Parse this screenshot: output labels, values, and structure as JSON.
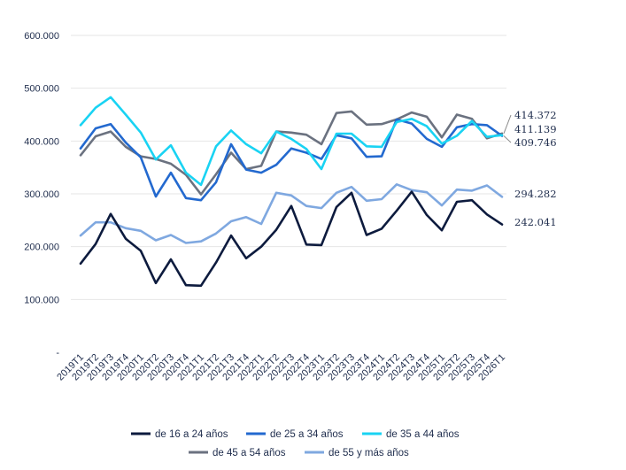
{
  "chart_data": {
    "type": "line",
    "title": "",
    "xlabel": "",
    "ylabel": "",
    "ylim": [
      0,
      600000
    ],
    "yticks": [
      {
        "value": 0,
        "label": "-"
      },
      {
        "value": 100000,
        "label": "100.000"
      },
      {
        "value": 200000,
        "label": "200.000"
      },
      {
        "value": 300000,
        "label": "300.000"
      },
      {
        "value": 400000,
        "label": "400.000"
      },
      {
        "value": 500000,
        "label": "500.000"
      },
      {
        "value": 600000,
        "label": "600.000"
      }
    ],
    "grid": "horizontal",
    "legend_position": "bottom",
    "categories": [
      "2019T1",
      "2019T2",
      "2019T3",
      "2019T4",
      "2020T1",
      "2020T2",
      "2020T3",
      "2020T4",
      "2021T1",
      "2021T2",
      "2021T3",
      "2021T4",
      "2022T1",
      "2022T2",
      "2022T3",
      "2022T4",
      "2023T1",
      "2023T2",
      "2023T3",
      "2023T4",
      "2024T1",
      "2024T2",
      "2024T3",
      "2024T4",
      "2025T1",
      "2025T2",
      "2025T3",
      "2025T4",
      "2026T1"
    ],
    "series": [
      {
        "name": "de 16 a 24 años",
        "color": "#0d1b3e",
        "values": [
          168000,
          205000,
          262000,
          215000,
          192000,
          131000,
          176000,
          127000,
          126000,
          170000,
          221000,
          178000,
          200000,
          232000,
          277000,
          204000,
          203000,
          275000,
          302000,
          222000,
          234000,
          268000,
          304000,
          260000,
          231000,
          285000,
          288000,
          261000,
          242041
        ]
      },
      {
        "name": "de 25 a 34 años",
        "color": "#2369cf",
        "values": [
          386000,
          424000,
          432000,
          397000,
          369000,
          295000,
          340000,
          292000,
          288000,
          322000,
          394000,
          346000,
          340000,
          355000,
          386000,
          378000,
          366000,
          411000,
          405000,
          370000,
          371000,
          441000,
          433000,
          404000,
          389000,
          426000,
          432000,
          430000,
          409746
        ]
      },
      {
        "name": "de 35 a 44 años",
        "color": "#19d3f3",
        "values": [
          430000,
          463000,
          483000,
          450000,
          416000,
          365000,
          392000,
          340000,
          317000,
          390000,
          420000,
          394000,
          377000,
          418000,
          404000,
          385000,
          347000,
          414000,
          414000,
          390000,
          389000,
          436000,
          442000,
          428000,
          395000,
          410000,
          438000,
          408000,
          411139
        ]
      },
      {
        "name": "de 45 a 54 años",
        "color": "#6b7280",
        "values": [
          373000,
          409000,
          418000,
          389000,
          371000,
          366000,
          357000,
          336000,
          299000,
          337000,
          378000,
          347000,
          353000,
          418000,
          416000,
          412000,
          394000,
          453000,
          456000,
          431000,
          432000,
          441000,
          454000,
          446000,
          407000,
          450000,
          442000,
          405000,
          414372
        ]
      },
      {
        "name": "de 55 y más años",
        "color": "#7fa8e0",
        "values": [
          221000,
          246000,
          246000,
          235000,
          230000,
          212000,
          222000,
          207000,
          210000,
          225000,
          248000,
          256000,
          243000,
          302000,
          297000,
          277000,
          273000,
          302000,
          313000,
          287000,
          290000,
          318000,
          307000,
          303000,
          278000,
          308000,
          306000,
          316000,
          294282
        ]
      }
    ],
    "end_labels": [
      {
        "series": 3,
        "text": "414.372"
      },
      {
        "series": 2,
        "text": "411.139"
      },
      {
        "series": 1,
        "text": "409.746"
      },
      {
        "series": 4,
        "text": "294.282"
      },
      {
        "series": 0,
        "text": "242.041"
      }
    ]
  }
}
